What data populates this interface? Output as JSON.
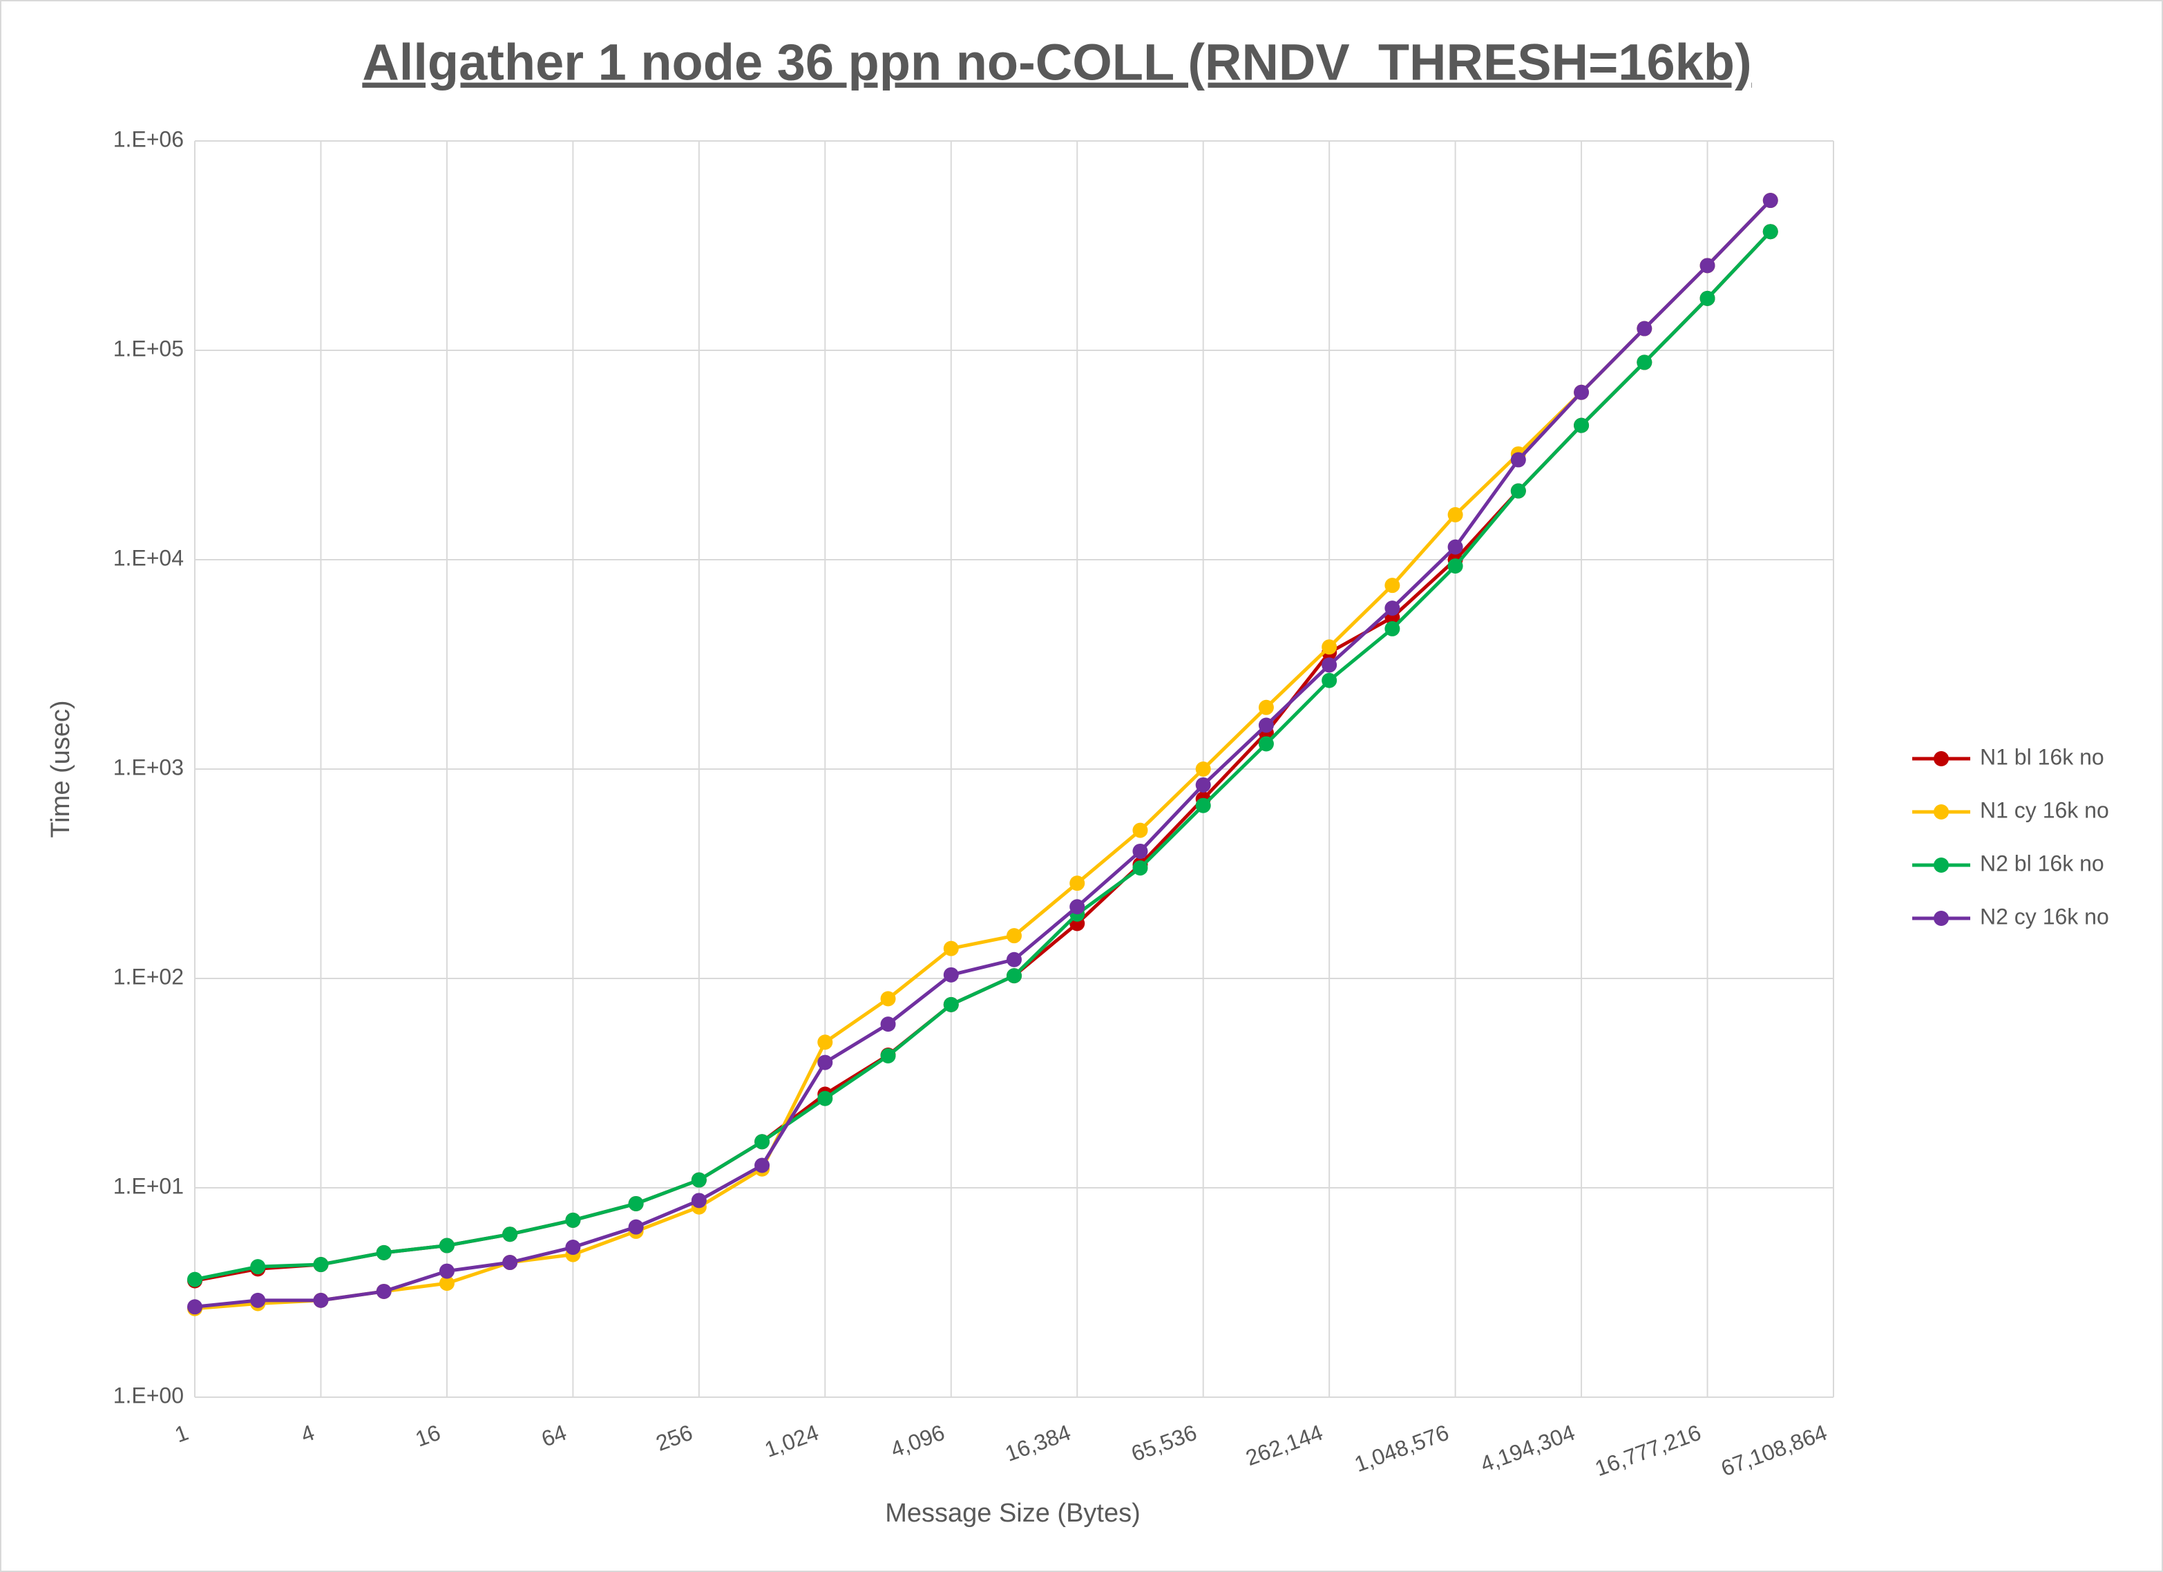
{
  "chart_data": {
    "type": "line",
    "title": "Allgather 1 node 36 ppn no-COLL (RNDV_THRESH=16kb)",
    "x_label": "Message Size (Bytes)",
    "y_label": "Time (usec)",
    "x_log_base": 2,
    "y_log_base": 10,
    "grid": true,
    "legend": "right",
    "x": [
      1,
      2,
      4,
      8,
      16,
      32,
      64,
      128,
      256,
      512,
      1024,
      2048,
      4096,
      8192,
      16384,
      32768,
      65536,
      131072,
      262144,
      524288,
      1048576,
      2097152,
      4194304,
      8388608,
      16777216,
      33554432
    ],
    "xlim": [
      1,
      67108864
    ],
    "xticks": [
      1,
      4,
      16,
      64,
      256,
      {
        "value": 1024,
        "label": "1,024"
      },
      {
        "value": 4096,
        "label": "4,096"
      },
      {
        "value": 16384,
        "label": "16,384"
      },
      {
        "value": 65536,
        "label": "65,536"
      },
      {
        "value": 262144,
        "label": "262,144"
      },
      {
        "value": 1048576,
        "label": "1,048,576"
      },
      {
        "value": 4194304,
        "label": "4,194,304"
      },
      {
        "value": 16777216,
        "label": "16,777,216"
      },
      {
        "value": 67108864,
        "label": "67,108,864"
      }
    ],
    "ylim": [
      1,
      1000000
    ],
    "yticks": [
      {
        "value": 1,
        "label": "1.E+00"
      },
      {
        "value": 10,
        "label": "1.E+01"
      },
      {
        "value": 100,
        "label": "1.E+02"
      },
      {
        "value": 1000,
        "label": "1.E+03"
      },
      {
        "value": 10000,
        "label": "1.E+04"
      },
      {
        "value": 100000,
        "label": "1.E+05"
      },
      {
        "value": 1000000,
        "label": "1.E+06"
      }
    ],
    "series": [
      {
        "name": "N1 bl 16k no",
        "color": "#c00000",
        "values": [
          3.6,
          4.1,
          4.3,
          4.9,
          5.3,
          6.0,
          7.0,
          8.4,
          10.9,
          16.6,
          28,
          43,
          75,
          103,
          183,
          350,
          720,
          1490,
          3600,
          5300,
          10000,
          21300,
          43800,
          87600,
          177000,
          369000
        ]
      },
      {
        "name": "N1 cy 16k no",
        "color": "#ffc000",
        "values": [
          2.65,
          2.8,
          2.9,
          3.2,
          3.5,
          4.4,
          4.8,
          6.2,
          8.1,
          12.3,
          49.6,
          80,
          139,
          160,
          285,
          510,
          1000,
          1970,
          3830,
          7540,
          16400,
          32000,
          63000,
          127000,
          254000,
          520000
        ]
      },
      {
        "name": "N2 bl 16k no",
        "color": "#00b050",
        "values": [
          3.65,
          4.2,
          4.3,
          4.9,
          5.3,
          6.0,
          7.0,
          8.4,
          10.9,
          16.6,
          26.7,
          42.7,
          75,
          103,
          203,
          337,
          670,
          1320,
          2650,
          4680,
          9330,
          21300,
          43800,
          87600,
          177000,
          369000
        ]
      },
      {
        "name": "N2 cy 16k no",
        "color": "#7030a0",
        "values": [
          2.7,
          2.9,
          2.9,
          3.2,
          4.0,
          4.4,
          5.2,
          6.5,
          8.7,
          12.8,
          39.7,
          60.5,
          104,
          123,
          220,
          405,
          840,
          1620,
          3140,
          5870,
          11500,
          30000,
          63000,
          127000,
          254000,
          520000
        ]
      }
    ]
  }
}
